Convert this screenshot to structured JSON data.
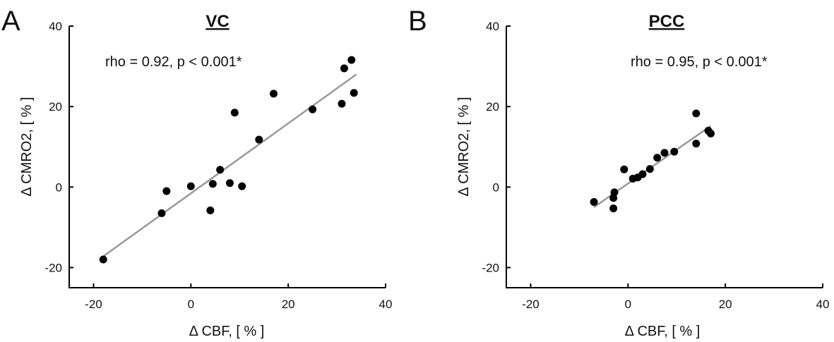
{
  "chart_data": [
    {
      "type": "scatter",
      "panel_letter": "A",
      "title": "VC",
      "annotation": "rho = 0.92, p < 0.001*",
      "xlabel": "Δ CBF, [ % ]",
      "ylabel": "Δ CMRO2, [  %  ]",
      "xlim": [
        -25,
        40
      ],
      "ylim": [
        -25,
        40
      ],
      "xticks": [
        -20,
        0,
        20,
        40
      ],
      "yticks": [
        -20,
        0,
        20,
        40
      ],
      "grid": false,
      "points": [
        {
          "x": -18,
          "y": -18
        },
        {
          "x": -6,
          "y": -6.5
        },
        {
          "x": -5,
          "y": -1
        },
        {
          "x": 0,
          "y": 0.2
        },
        {
          "x": 4,
          "y": -5.8
        },
        {
          "x": 4.5,
          "y": 0.8
        },
        {
          "x": 6,
          "y": 4.3
        },
        {
          "x": 8,
          "y": 1
        },
        {
          "x": 9,
          "y": 18.5
        },
        {
          "x": 10.5,
          "y": 0.2
        },
        {
          "x": 14,
          "y": 11.8
        },
        {
          "x": 17,
          "y": 23.2
        },
        {
          "x": 25,
          "y": 19.3
        },
        {
          "x": 31,
          "y": 20.7
        },
        {
          "x": 31.5,
          "y": 29.5
        },
        {
          "x": 33,
          "y": 31.6
        },
        {
          "x": 33.5,
          "y": 23.4
        }
      ],
      "fit_line": {
        "x": [
          -18,
          34
        ],
        "y": [
          -17.2,
          28
        ]
      }
    },
    {
      "type": "scatter",
      "panel_letter": "B",
      "title": "PCC",
      "annotation": "rho = 0.95, p < 0.001*",
      "xlabel": "Δ CBF, [ % ]",
      "ylabel": "Δ CMRO2, [  %  ]",
      "xlim": [
        -25,
        40
      ],
      "ylim": [
        -25,
        40
      ],
      "xticks": [
        -20,
        0,
        20,
        40
      ],
      "yticks": [
        -20,
        0,
        20,
        40
      ],
      "grid": false,
      "points": [
        {
          "x": -7,
          "y": -3.7
        },
        {
          "x": -3,
          "y": -5.3
        },
        {
          "x": -3,
          "y": -2.7
        },
        {
          "x": -2.8,
          "y": -1.3
        },
        {
          "x": -0.8,
          "y": 4.4
        },
        {
          "x": 1,
          "y": 2.1
        },
        {
          "x": 2,
          "y": 2.4
        },
        {
          "x": 3,
          "y": 3.2
        },
        {
          "x": 4.5,
          "y": 4.5
        },
        {
          "x": 6,
          "y": 7.3
        },
        {
          "x": 7.5,
          "y": 8.5
        },
        {
          "x": 9.5,
          "y": 8.8
        },
        {
          "x": 14,
          "y": 10.8
        },
        {
          "x": 14,
          "y": 18.3
        },
        {
          "x": 16.5,
          "y": 14
        },
        {
          "x": 17,
          "y": 13.3
        }
      ],
      "fit_line": {
        "x": [
          -7,
          17
        ],
        "y": [
          -5,
          15.2
        ]
      }
    }
  ]
}
